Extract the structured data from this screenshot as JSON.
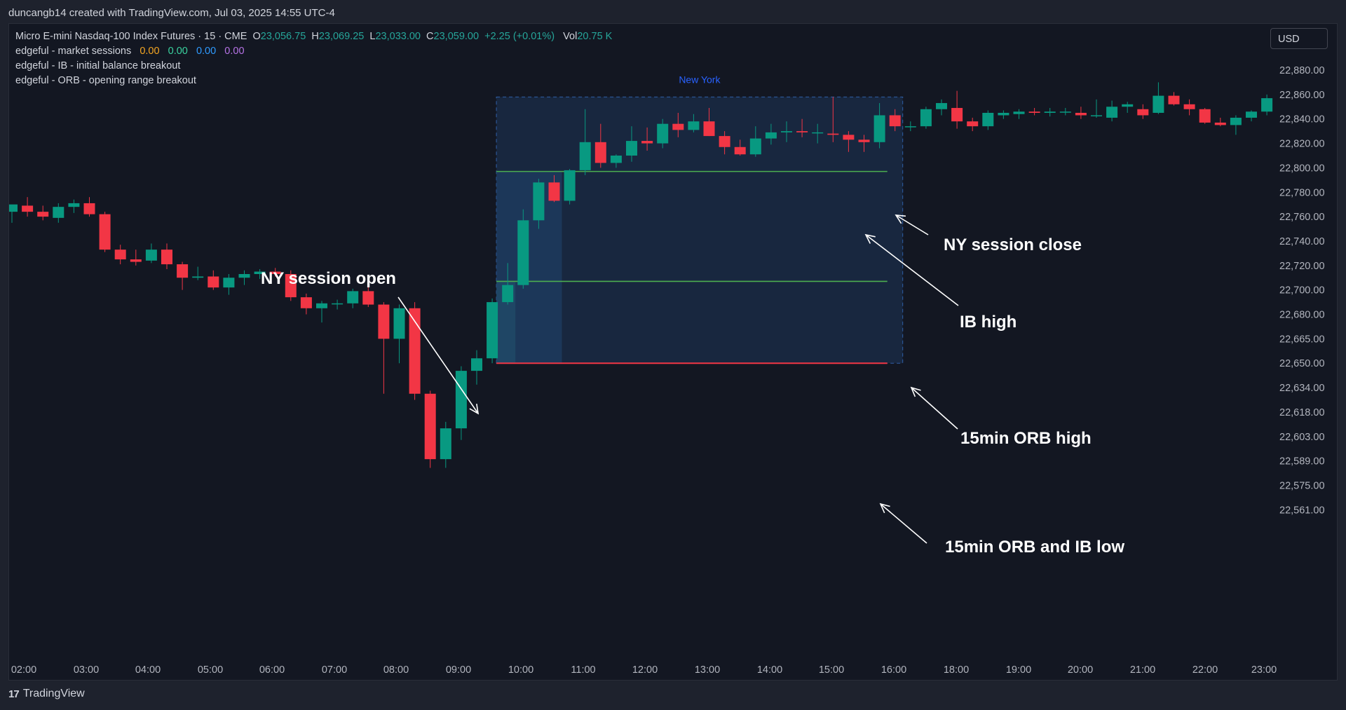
{
  "header": {
    "credit": "duncangb14 created with TradingView.com, Jul 03, 2025 14:55 UTC-4"
  },
  "legend": {
    "symbol": "Micro E-mini Nasdaq-100 Index Futures · 15 · CME",
    "o_label": "O",
    "o_value": "23,056.75",
    "h_label": "H",
    "h_value": "23,069.25",
    "l_label": "L",
    "l_value": "23,033.00",
    "c_label": "C",
    "c_value": "23,059.00",
    "change": "+2.25 (+0.01%)",
    "vol_label": "Vol",
    "vol_value": "20.75 K",
    "indicators": [
      "edgeful - market sessions",
      "edgeful - IB - initial balance breakout",
      "edgeful - ORB - opening range breakout"
    ],
    "session_values": [
      "0.00",
      "0.00",
      "0.00",
      "0.00"
    ]
  },
  "currency_button": "USD",
  "footer": {
    "brand": "TradingView",
    "brand_mark": "17"
  },
  "colors": {
    "background": "#131722",
    "bull": "#089981",
    "bear": "#f23645",
    "session_box": "#1a2a44",
    "ib_line": "#4caf50",
    "low_line": "#f23645",
    "session_label": "#2962ff"
  },
  "chart_data": {
    "type": "candlestick",
    "title": "Micro E-mini Nasdaq-100 Index Futures · 15 · CME",
    "interval": "15",
    "session_label": "New York",
    "x_ticks": [
      "02:00",
      "03:00",
      "04:00",
      "05:00",
      "06:00",
      "07:00",
      "08:00",
      "09:00",
      "10:00",
      "11:00",
      "12:00",
      "13:00",
      "14:00",
      "15:00",
      "16:00",
      "18:00",
      "19:00",
      "20:00",
      "21:00",
      "22:00",
      "23:00"
    ],
    "y_ticks": [
      "22,880.00",
      "22,860.00",
      "22,840.00",
      "22,820.00",
      "22,800.00",
      "22,780.00",
      "22,760.00",
      "22,740.00",
      "22,720.00",
      "22,700.00",
      "22,680.00",
      "22,665.00",
      "22,650.00",
      "22,634.00",
      "22,618.00",
      "22,603.00",
      "22,589.00",
      "22,575.00",
      "22,561.00"
    ],
    "y_tick_values": [
      22880,
      22860,
      22840,
      22820,
      22800,
      22780,
      22760,
      22740,
      22720,
      22700,
      22680,
      22665,
      22650,
      22634,
      22618,
      22603,
      22589,
      22575,
      22561
    ],
    "levels": {
      "session_high": 22858,
      "ib_high": 22797,
      "orb_high": 22707,
      "orb_ib_low": 22650
    },
    "candles": [
      {
        "o": 22764,
        "h": 22768,
        "l": 22755,
        "c": 22770
      },
      {
        "o": 22769,
        "h": 22776,
        "l": 22760,
        "c": 22764
      },
      {
        "o": 22764,
        "h": 22769,
        "l": 22757,
        "c": 22760
      },
      {
        "o": 22759,
        "h": 22771,
        "l": 22755,
        "c": 22768
      },
      {
        "o": 22768,
        "h": 22774,
        "l": 22763,
        "c": 22771
      },
      {
        "o": 22771,
        "h": 22776,
        "l": 22760,
        "c": 22762
      },
      {
        "o": 22762,
        "h": 22764,
        "l": 22731,
        "c": 22733
      },
      {
        "o": 22733,
        "h": 22737,
        "l": 22721,
        "c": 22725
      },
      {
        "o": 22725,
        "h": 22733,
        "l": 22720,
        "c": 22723
      },
      {
        "o": 22724,
        "h": 22738,
        "l": 22722,
        "c": 22733
      },
      {
        "o": 22733,
        "h": 22738,
        "l": 22717,
        "c": 22721
      },
      {
        "o": 22721,
        "h": 22723,
        "l": 22700,
        "c": 22710
      },
      {
        "o": 22710,
        "h": 22719,
        "l": 22708,
        "c": 22711
      },
      {
        "o": 22711,
        "h": 22716,
        "l": 22700,
        "c": 22702
      },
      {
        "o": 22702,
        "h": 22713,
        "l": 22696,
        "c": 22710
      },
      {
        "o": 22710,
        "h": 22716,
        "l": 22704,
        "c": 22713
      },
      {
        "o": 22713,
        "h": 22717,
        "l": 22709,
        "c": 22715
      },
      {
        "o": 22715,
        "h": 22718,
        "l": 22711,
        "c": 22713
      },
      {
        "o": 22713,
        "h": 22716,
        "l": 22691,
        "c": 22694
      },
      {
        "o": 22694,
        "h": 22697,
        "l": 22680,
        "c": 22685
      },
      {
        "o": 22685,
        "h": 22691,
        "l": 22675,
        "c": 22689
      },
      {
        "o": 22689,
        "h": 22692,
        "l": 22684,
        "c": 22689
      },
      {
        "o": 22689,
        "h": 22701,
        "l": 22685,
        "c": 22699
      },
      {
        "o": 22699,
        "h": 22703,
        "l": 22686,
        "c": 22688
      },
      {
        "o": 22688,
        "h": 22690,
        "l": 22630,
        "c": 22665
      },
      {
        "o": 22665,
        "h": 22688,
        "l": 22650,
        "c": 22685
      },
      {
        "o": 22685,
        "h": 22690,
        "l": 22626,
        "c": 22630
      },
      {
        "o": 22630,
        "h": 22632,
        "l": 22585,
        "c": 22590
      },
      {
        "o": 22590,
        "h": 22612,
        "l": 22585,
        "c": 22608
      },
      {
        "o": 22608,
        "h": 22648,
        "l": 22601,
        "c": 22645
      },
      {
        "o": 22645,
        "h": 22658,
        "l": 22636,
        "c": 22653
      },
      {
        "o": 22653,
        "h": 22693,
        "l": 22650,
        "c": 22690
      },
      {
        "o": 22690,
        "h": 22722,
        "l": 22688,
        "c": 22704
      },
      {
        "o": 22704,
        "h": 22766,
        "l": 22701,
        "c": 22757
      },
      {
        "o": 22757,
        "h": 22791,
        "l": 22750,
        "c": 22788
      },
      {
        "o": 22788,
        "h": 22794,
        "l": 22772,
        "c": 22773
      },
      {
        "o": 22773,
        "h": 22799,
        "l": 22770,
        "c": 22798
      },
      {
        "o": 22798,
        "h": 22848,
        "l": 22794,
        "c": 22821
      },
      {
        "o": 22821,
        "h": 22836,
        "l": 22800,
        "c": 22804
      },
      {
        "o": 22804,
        "h": 22811,
        "l": 22800,
        "c": 22810
      },
      {
        "o": 22810,
        "h": 22834,
        "l": 22805,
        "c": 22822
      },
      {
        "o": 22822,
        "h": 22833,
        "l": 22814,
        "c": 22820
      },
      {
        "o": 22820,
        "h": 22840,
        "l": 22816,
        "c": 22836
      },
      {
        "o": 22836,
        "h": 22845,
        "l": 22825,
        "c": 22831
      },
      {
        "o": 22831,
        "h": 22844,
        "l": 22829,
        "c": 22838
      },
      {
        "o": 22838,
        "h": 22849,
        "l": 22826,
        "c": 22826
      },
      {
        "o": 22826,
        "h": 22830,
        "l": 22811,
        "c": 22817
      },
      {
        "o": 22817,
        "h": 22823,
        "l": 22810,
        "c": 22811
      },
      {
        "o": 22811,
        "h": 22834,
        "l": 22809,
        "c": 22824
      },
      {
        "o": 22824,
        "h": 22836,
        "l": 22819,
        "c": 22829
      },
      {
        "o": 22829,
        "h": 22838,
        "l": 22821,
        "c": 22830
      },
      {
        "o": 22830,
        "h": 22840,
        "l": 22825,
        "c": 22829
      },
      {
        "o": 22829,
        "h": 22836,
        "l": 22820,
        "c": 22829
      },
      {
        "o": 22828,
        "h": 22858,
        "l": 22821,
        "c": 22827
      },
      {
        "o": 22827,
        "h": 22830,
        "l": 22813,
        "c": 22823
      },
      {
        "o": 22823,
        "h": 22827,
        "l": 22813,
        "c": 22821
      },
      {
        "o": 22821,
        "h": 22853,
        "l": 22816,
        "c": 22843
      },
      {
        "o": 22843,
        "h": 22848,
        "l": 22830,
        "c": 22834
      },
      {
        "o": 22834,
        "h": 22838,
        "l": 22830,
        "c": 22834
      },
      {
        "o": 22834,
        "h": 22850,
        "l": 22832,
        "c": 22848
      },
      {
        "o": 22848,
        "h": 22856,
        "l": 22843,
        "c": 22853
      },
      {
        "o": 22849,
        "h": 22863,
        "l": 22832,
        "c": 22838
      },
      {
        "o": 22838,
        "h": 22841,
        "l": 22830,
        "c": 22834
      },
      {
        "o": 22834,
        "h": 22847,
        "l": 22831,
        "c": 22845
      },
      {
        "o": 22843,
        "h": 22847,
        "l": 22840,
        "c": 22845
      },
      {
        "o": 22844,
        "h": 22848,
        "l": 22840,
        "c": 22846
      },
      {
        "o": 22846,
        "h": 22849,
        "l": 22843,
        "c": 22845
      },
      {
        "o": 22845,
        "h": 22849,
        "l": 22842,
        "c": 22846
      },
      {
        "o": 22846,
        "h": 22849,
        "l": 22843,
        "c": 22846
      },
      {
        "o": 22845,
        "h": 22850,
        "l": 22840,
        "c": 22843
      },
      {
        "o": 22843,
        "h": 22856,
        "l": 22841,
        "c": 22843
      },
      {
        "o": 22841,
        "h": 22855,
        "l": 22838,
        "c": 22850
      },
      {
        "o": 22850,
        "h": 22854,
        "l": 22845,
        "c": 22852
      },
      {
        "o": 22848,
        "h": 22852,
        "l": 22840,
        "c": 22843
      },
      {
        "o": 22845,
        "h": 22870,
        "l": 22844,
        "c": 22859
      },
      {
        "o": 22859,
        "h": 22862,
        "l": 22851,
        "c": 22852
      },
      {
        "o": 22852,
        "h": 22856,
        "l": 22843,
        "c": 22848
      },
      {
        "o": 22848,
        "h": 22849,
        "l": 22836,
        "c": 22837
      },
      {
        "o": 22837,
        "h": 22841,
        "l": 22834,
        "c": 22835
      },
      {
        "o": 22835,
        "h": 22843,
        "l": 22827,
        "c": 22841
      },
      {
        "o": 22841,
        "h": 22847,
        "l": 22838,
        "c": 22846
      },
      {
        "o": 22846,
        "h": 22860,
        "l": 22843,
        "c": 22857
      }
    ]
  },
  "annotations": {
    "ny_open": "NY session open",
    "ny_close": "NY session close",
    "ib_high": "IB high",
    "orb_high": "15min ORB high",
    "orb_ib_low": "15min ORB and IB low"
  }
}
